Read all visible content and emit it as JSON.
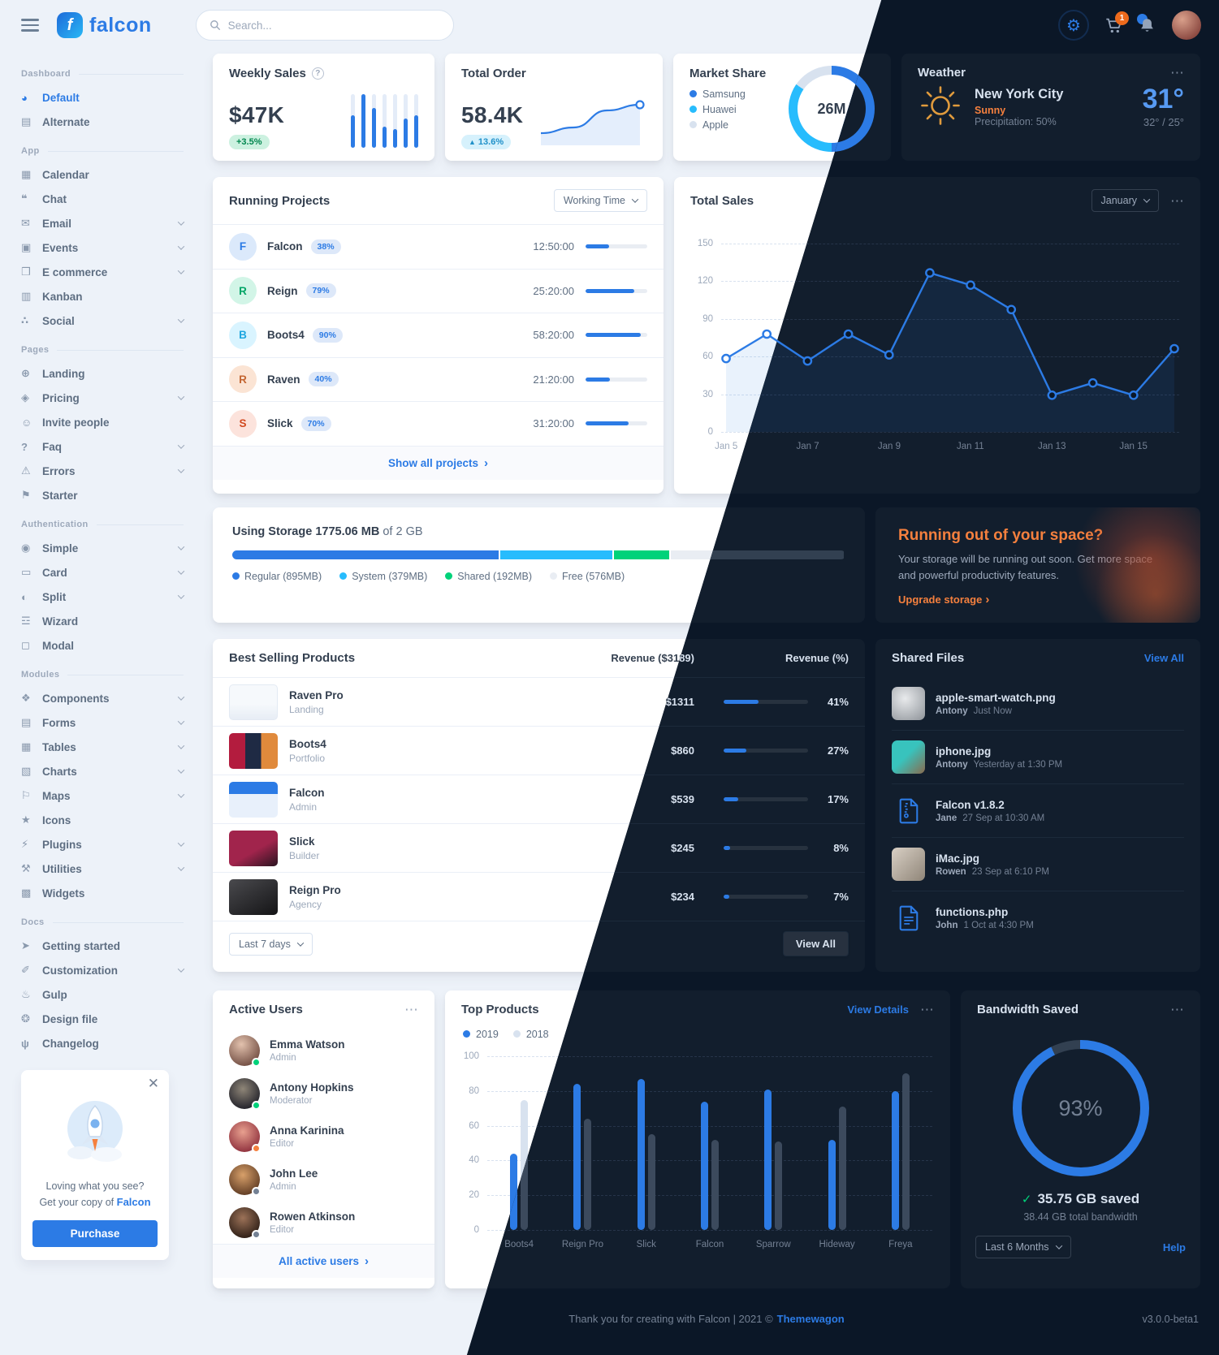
{
  "brand": {
    "name": "falcon",
    "logo_letter": "f"
  },
  "topbar": {
    "search_placeholder": "Search...",
    "cart_badge": "1"
  },
  "colors": {
    "primary": "#2c7be5",
    "info": "#27bcfd",
    "success": "#00d27a",
    "warning": "#f5803e",
    "danger": "#e63757",
    "dark_bg": "#0b1727",
    "light_bg": "#edf2f9"
  },
  "sidebar": {
    "sections": [
      {
        "label": "Dashboard",
        "items": [
          {
            "label": "Default",
            "icon": "pie-chart-icon",
            "active": true
          },
          {
            "label": "Alternate",
            "icon": "chart-icon"
          }
        ]
      },
      {
        "label": "App",
        "items": [
          {
            "label": "Calendar",
            "icon": "calendar-icon"
          },
          {
            "label": "Chat",
            "icon": "chat-icon"
          },
          {
            "label": "Email",
            "icon": "envelope-icon",
            "chevron": true
          },
          {
            "label": "Events",
            "icon": "calendar-event-icon",
            "chevron": true
          },
          {
            "label": "E commerce",
            "icon": "shopping-cart-icon",
            "chevron": true
          },
          {
            "label": "Kanban",
            "icon": "kanban-icon"
          },
          {
            "label": "Social",
            "icon": "share-icon",
            "chevron": true
          }
        ]
      },
      {
        "label": "Pages",
        "items": [
          {
            "label": "Landing",
            "icon": "globe-icon"
          },
          {
            "label": "Pricing",
            "icon": "tags-icon",
            "chevron": true
          },
          {
            "label": "Invite people",
            "icon": "user-plus-icon"
          },
          {
            "label": "Faq",
            "icon": "question-icon",
            "chevron": true
          },
          {
            "label": "Errors",
            "icon": "warning-icon",
            "chevron": true
          },
          {
            "label": "Starter",
            "icon": "flag-icon"
          }
        ]
      },
      {
        "label": "Authentication",
        "items": [
          {
            "label": "Simple",
            "icon": "lock-icon",
            "chevron": true
          },
          {
            "label": "Card",
            "icon": "card-icon",
            "chevron": true
          },
          {
            "label": "Split",
            "icon": "split-icon",
            "chevron": true
          },
          {
            "label": "Wizard",
            "icon": "wizard-icon"
          },
          {
            "label": "Modal",
            "icon": "modal-icon"
          }
        ]
      },
      {
        "label": "Modules",
        "items": [
          {
            "label": "Components",
            "icon": "components-icon",
            "chevron": true
          },
          {
            "label": "Forms",
            "icon": "forms-icon",
            "chevron": true
          },
          {
            "label": "Tables",
            "icon": "table-icon",
            "chevron": true
          },
          {
            "label": "Charts",
            "icon": "chart-bars-icon",
            "chevron": true
          },
          {
            "label": "Maps",
            "icon": "map-icon",
            "chevron": true
          },
          {
            "label": "Icons",
            "icon": "star-icon"
          },
          {
            "label": "Plugins",
            "icon": "plug-icon",
            "chevron": true
          },
          {
            "label": "Utilities",
            "icon": "tools-icon",
            "chevron": true
          },
          {
            "label": "Widgets",
            "icon": "widgets-icon"
          }
        ]
      },
      {
        "label": "Docs",
        "items": [
          {
            "label": "Getting started",
            "icon": "rocket-icon"
          },
          {
            "label": "Customization",
            "icon": "wrench-icon",
            "chevron": true
          },
          {
            "label": "Gulp",
            "icon": "gulp-icon"
          },
          {
            "label": "Design file",
            "icon": "palette-icon"
          },
          {
            "label": "Changelog",
            "icon": "code-branch-icon"
          }
        ]
      }
    ],
    "promo": {
      "line1": "Loving what you see?",
      "line2": "Get your copy of",
      "link": "Falcon",
      "button": "Purchase"
    }
  },
  "cards": {
    "weekly_sales": {
      "title": "Weekly Sales",
      "value": "$47K",
      "badge": "+3.5%"
    },
    "total_order": {
      "title": "Total Order",
      "value": "58.4K",
      "badge": "13.6%"
    },
    "market_share": {
      "title": "Market Share",
      "value": "26M"
    },
    "weather": {
      "title": "Weather",
      "city": "New York City",
      "condition": "Sunny",
      "precipitation": "Precipitation: 50%",
      "temp": "31°",
      "range": "32° / 25°"
    },
    "running_projects": {
      "title": "Running Projects",
      "dropdown": "Working Time",
      "footer_link": "Show all projects",
      "projects": [
        {
          "initial": "F",
          "name": "Falcon",
          "percent": 38,
          "time": "12:50:00",
          "avatar_color": "#2c7be5",
          "avatar_bg": "#dbe9fb"
        },
        {
          "initial": "R",
          "name": "Reign",
          "percent": 79,
          "time": "25:20:00",
          "avatar_color": "#00a566",
          "avatar_bg": "#d2f5e7"
        },
        {
          "initial": "B",
          "name": "Boots4",
          "percent": 90,
          "time": "58:20:00",
          "avatar_color": "#1ea6e0",
          "avatar_bg": "#d9f4ff"
        },
        {
          "initial": "R",
          "name": "Raven",
          "percent": 40,
          "time": "21:20:00",
          "avatar_color": "#c46632",
          "avatar_bg": "#fbe4d4"
        },
        {
          "initial": "S",
          "name": "Slick",
          "percent": 70,
          "time": "31:20:00",
          "avatar_color": "#d2491f",
          "avatar_bg": "#fce3dc"
        }
      ]
    },
    "total_sales": {
      "title": "Total Sales",
      "dropdown": "January"
    },
    "storage": {
      "title_prefix": "Using Storage",
      "used": "1775.06 MB",
      "suffix": "of 2 GB",
      "total_mb": 2048,
      "segments": [
        {
          "label": "Regular (895MB)",
          "mb": 895,
          "color": "#2c7be5"
        },
        {
          "label": "System (379MB)",
          "mb": 379,
          "color": "#27bcfd"
        },
        {
          "label": "Shared (192MB)",
          "mb": 192,
          "color": "#00d27a"
        },
        {
          "label": "Free (576MB)",
          "mb": 576,
          "color": null
        }
      ]
    },
    "upgrade": {
      "title": "Running out of your space?",
      "text": "Your storage will be running out soon. Get more space and powerful productivity features.",
      "link": "Upgrade storage"
    },
    "best_selling": {
      "title": "Best Selling Products",
      "col_revenue": "Revenue ($3189)",
      "col_percent": "Revenue (%)",
      "dropdown": "Last 7 days",
      "view_all": "View All",
      "products": [
        {
          "name": "Raven Pro",
          "category": "Landing",
          "revenue": "$1311",
          "percent": 41
        },
        {
          "name": "Boots4",
          "category": "Portfolio",
          "revenue": "$860",
          "percent": 27
        },
        {
          "name": "Falcon",
          "category": "Admin",
          "revenue": "$539",
          "percent": 17
        },
        {
          "name": "Slick",
          "category": "Builder",
          "revenue": "$245",
          "percent": 8
        },
        {
          "name": "Reign Pro",
          "category": "Agency",
          "revenue": "$234",
          "percent": 7
        }
      ]
    },
    "shared_files": {
      "title": "Shared Files",
      "view_all": "View All",
      "files": [
        {
          "name": "apple-smart-watch.png",
          "user": "Antony",
          "time": "Just Now",
          "thumb": "photo"
        },
        {
          "name": "iphone.jpg",
          "user": "Antony",
          "time": "Yesterday at 1:30 PM",
          "thumb": "photo"
        },
        {
          "name": "Falcon v1.8.2",
          "user": "Jane",
          "time": "27 Sep at 10:30 AM",
          "thumb": "zip-file-icon"
        },
        {
          "name": "iMac.jpg",
          "user": "Rowen",
          "time": "23 Sep at 6:10 PM",
          "thumb": "photo"
        },
        {
          "name": "functions.php",
          "user": "John",
          "time": "1 Oct at 4:30 PM",
          "thumb": "code-file-icon"
        }
      ]
    },
    "active_users": {
      "title": "Active Users",
      "footer_link": "All active users",
      "users": [
        {
          "name": "Emma Watson",
          "role": "Admin",
          "status_color": "#00d27a"
        },
        {
          "name": "Antony Hopkins",
          "role": "Moderator",
          "status_color": "#00d27a"
        },
        {
          "name": "Anna Karinina",
          "role": "Editor",
          "status_color": "#f5803e"
        },
        {
          "name": "John Lee",
          "role": "Admin",
          "status_color": "#748194"
        },
        {
          "name": "Rowen Atkinson",
          "role": "Editor",
          "status_color": "#748194"
        }
      ]
    },
    "top_products": {
      "title": "Top Products",
      "link": "View Details"
    },
    "bandwidth": {
      "title": "Bandwidth Saved",
      "percent": "93%",
      "saved": "35.75 GB saved",
      "total": "38.44 GB total bandwidth",
      "dropdown": "Last 6 Months",
      "help": "Help"
    }
  },
  "footer": {
    "left": "Thank you for creating with Falcon | 2021 ©",
    "link": "Themewagon",
    "version": "v3.0.0-beta1"
  },
  "chart_data": [
    {
      "id": "weekly_sales_bars",
      "type": "bar",
      "title": "Weekly Sales",
      "values": [
        120,
        200,
        150,
        80,
        70,
        110,
        120
      ],
      "ylim": [
        0,
        200
      ],
      "color": "#2c7be5"
    },
    {
      "id": "total_order_line",
      "type": "area",
      "title": "Total Order",
      "values": [
        20,
        40,
        100,
        120
      ],
      "color": "#2c7be5"
    },
    {
      "id": "market_share_donut",
      "type": "pie",
      "title": "Market Share",
      "center_label": "26M",
      "slices": [
        {
          "label": "Samsung",
          "value": 13,
          "color": "#2c7be5"
        },
        {
          "label": "Huawei",
          "value": 9,
          "color": "#27bcfd"
        },
        {
          "label": "Apple",
          "value": 4,
          "color": "#d8e2ef"
        }
      ]
    },
    {
      "id": "total_sales_line",
      "type": "line",
      "title": "Total Sales",
      "x": [
        "Jan 5",
        "Jan 6",
        "Jan 7",
        "Jan 8",
        "Jan 9",
        "Jan 10",
        "Jan 11",
        "Jan 12",
        "Jan 13",
        "Jan 14",
        "Jan 15",
        "Jan 16"
      ],
      "values": [
        60,
        80,
        58,
        80,
        63,
        130,
        120,
        100,
        30,
        40,
        30,
        68
      ],
      "x_ticks": [
        "Jan 5",
        "Jan 7",
        "Jan 9",
        "Jan 11",
        "Jan 13",
        "Jan 15"
      ],
      "y_ticks": [
        0,
        30,
        60,
        90,
        120,
        150
      ],
      "ylim": [
        0,
        150
      ],
      "grid": "dashed",
      "color": "#2c7be5"
    },
    {
      "id": "top_products_bars",
      "type": "bar",
      "title": "Top Products",
      "categories": [
        "Boots4",
        "Reign Pro",
        "Slick",
        "Falcon",
        "Sparrow",
        "Hideway",
        "Freya"
      ],
      "series": [
        {
          "name": "2019",
          "color": "#2c7be5",
          "values": [
            44,
            84,
            87,
            74,
            81,
            52,
            80
          ]
        },
        {
          "name": "2018",
          "color": "#d8e2ef",
          "values": [
            75,
            64,
            55,
            52,
            51,
            71,
            90
          ]
        }
      ],
      "y_ticks": [
        0,
        20,
        40,
        60,
        80,
        100
      ],
      "ylim": [
        0,
        100
      ],
      "legend_position": "top-left",
      "grid": "dashed"
    },
    {
      "id": "bandwidth_donut",
      "type": "pie",
      "title": "Bandwidth Saved",
      "center_label": "93%",
      "slices": [
        {
          "label": "saved",
          "value": 93,
          "color": "#2c7be5"
        },
        {
          "label": "remaining",
          "value": 7,
          "color": "#374a63"
        }
      ]
    }
  ]
}
